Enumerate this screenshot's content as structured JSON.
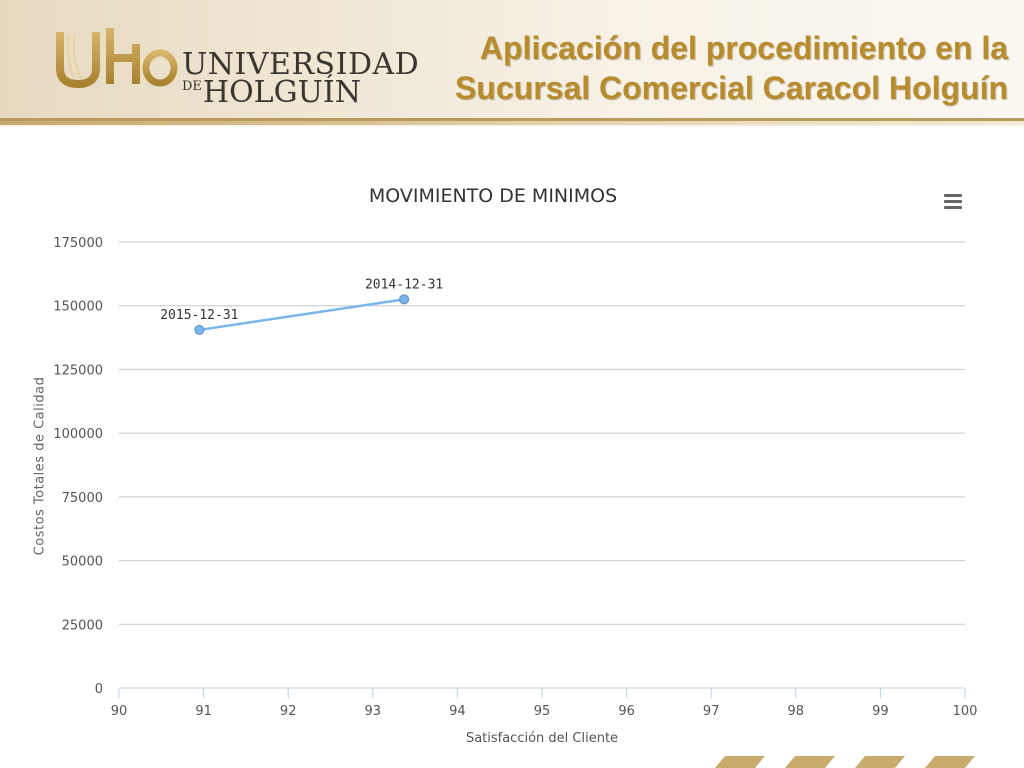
{
  "header": {
    "logo_mark": "UHo",
    "logo_line1": "UNIVERSIDAD",
    "logo_de": "DE",
    "logo_line2": "HOLGUÍN",
    "title_line1": "Aplicación del procedimiento en la",
    "title_line2": "Sucursal Comercial Caracol Holguín"
  },
  "chart_data": {
    "type": "line",
    "title": "MOVIMIENTO DE MINIMOS",
    "xlabel": "Satisfacción del Cliente",
    "ylabel": "Costos Totales de Calidad",
    "xlim": [
      90,
      100
    ],
    "ylim": [
      0,
      175000
    ],
    "x_ticks": [
      90,
      91,
      92,
      93,
      94,
      95,
      96,
      97,
      98,
      99,
      100
    ],
    "y_ticks": [
      0,
      25000,
      50000,
      75000,
      100000,
      125000,
      150000,
      175000
    ],
    "grid": true,
    "legend": "none",
    "series": [
      {
        "color": "#7cb5ec",
        "points": [
          {
            "x": 90.95,
            "y": 140500,
            "label": "2015-12-31"
          },
          {
            "x": 93.37,
            "y": 152500,
            "label": "2014-12-31"
          }
        ]
      }
    ]
  },
  "colors": {
    "title": "#b88c2c",
    "line": "#7cb5ec",
    "grid": "#c8c8c8"
  },
  "icons": {
    "menu": "hamburger-menu-icon"
  }
}
